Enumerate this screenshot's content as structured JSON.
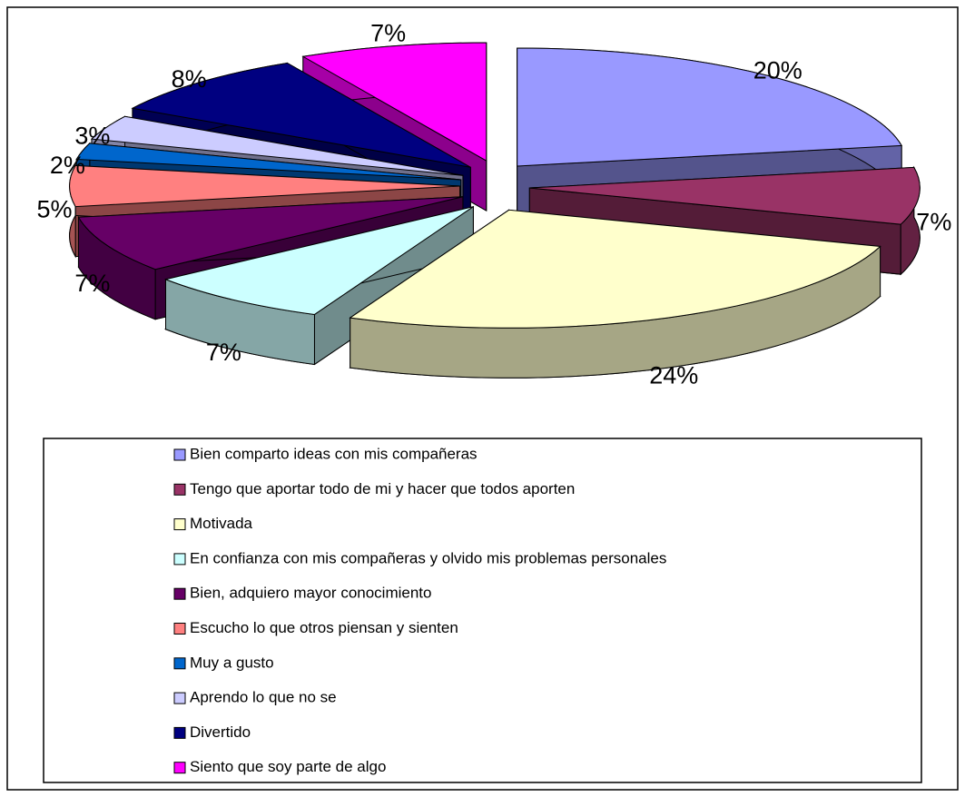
{
  "chart_data": {
    "type": "pie3d",
    "categories": [
      "Bien comparto ideas con mis compañeras",
      "Tengo que aportar todo de mi y hacer que todos aporten",
      "Motivada",
      "En confianza con mis compañeras y olvido mis problemas personales",
      "Bien, adquiero mayor conocimiento",
      "Escucho lo que otros piensan y sienten",
      "Muy a gusto",
      "Aprendo lo que no se",
      "Divertido",
      "Siento que soy parte de algo"
    ],
    "values": [
      20,
      7,
      24,
      7,
      7,
      5,
      2,
      3,
      8,
      7
    ],
    "value_labels": [
      "20%",
      "7%",
      "24%",
      "7%",
      "7%",
      "5%",
      "2%",
      "3%",
      "8%",
      "7%"
    ],
    "colors": [
      "#9999ff",
      "#993366",
      "#ffffcc",
      "#ccffff",
      "#660066",
      "#ff8080",
      "#0066cc",
      "#ccccff",
      "#000080",
      "#ff00ff"
    ],
    "legend": "bottom"
  }
}
